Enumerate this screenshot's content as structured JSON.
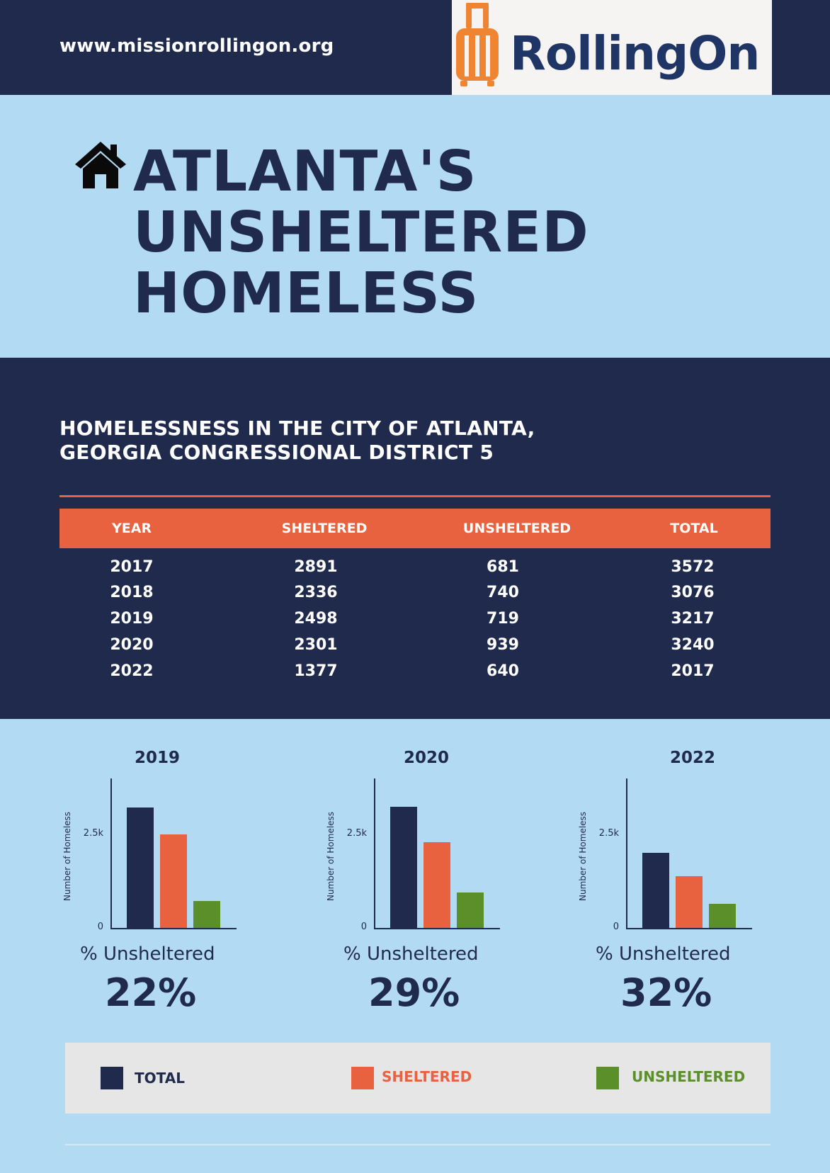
{
  "header": {
    "url": "www.missionrollingon.org",
    "logo_text": "RollingOn",
    "logo_icon": "suitcase-icon"
  },
  "title": {
    "icon": "house-icon",
    "lines": [
      "ATLANTA'S",
      "UNSHELTERED",
      "HOMELESS"
    ]
  },
  "table": {
    "subtitle_lines": [
      "HOMELESSNESS IN THE CITY OF ATLANTA,",
      "GEORGIA CONGRESSIONAL DISTRICT 5"
    ],
    "columns": [
      "YEAR",
      "SHELTERED",
      "UNSHELTERED",
      "TOTAL"
    ],
    "rows": [
      [
        "2017",
        "2891",
        "681",
        "3572"
      ],
      [
        "2018",
        "2336",
        "740",
        "3076"
      ],
      [
        "2019",
        "2498",
        "719",
        "3217"
      ],
      [
        "2020",
        "2301",
        "939",
        "3240"
      ],
      [
        "2022",
        "1377",
        "640",
        "2017"
      ]
    ]
  },
  "colors": {
    "total": "#1f2a4c",
    "sheltered": "#e8623f",
    "unsheltered": "#5b8f2a",
    "accent": "#e8623f",
    "background": "#b3daf3"
  },
  "chart_data": [
    {
      "type": "bar",
      "title": "2019",
      "ylabel": "Number of Homeless",
      "yticks": [
        "0",
        "2.5k"
      ],
      "ylim": [
        0,
        4000
      ],
      "categories": [
        "TOTAL",
        "SHELTERED",
        "UNSHELTERED"
      ],
      "values": [
        3217,
        2498,
        719
      ],
      "pct_caption": "% Unsheltered",
      "pct_value": "22%"
    },
    {
      "type": "bar",
      "title": "2020",
      "ylabel": "Number of Homeless",
      "yticks": [
        "0",
        "2.5k"
      ],
      "ylim": [
        0,
        4000
      ],
      "categories": [
        "TOTAL",
        "SHELTERED",
        "UNSHELTERED"
      ],
      "values": [
        3240,
        2301,
        939
      ],
      "pct_caption": "% Unsheltered",
      "pct_value": "29%"
    },
    {
      "type": "bar",
      "title": "2022",
      "ylabel": "Number of Homeless",
      "yticks": [
        "0",
        "2.5k"
      ],
      "ylim": [
        0,
        4000
      ],
      "categories": [
        "TOTAL",
        "SHELTERED",
        "UNSHELTERED"
      ],
      "values": [
        2017,
        1377,
        640
      ],
      "pct_caption": "% Unsheltered",
      "pct_value": "32%"
    }
  ],
  "legend": [
    {
      "label": "TOTAL",
      "color": "#1f2a4c"
    },
    {
      "label": "SHELTERED",
      "color": "#e8623f"
    },
    {
      "label": "UNSHELTERED",
      "color": "#5b8f2a"
    }
  ]
}
